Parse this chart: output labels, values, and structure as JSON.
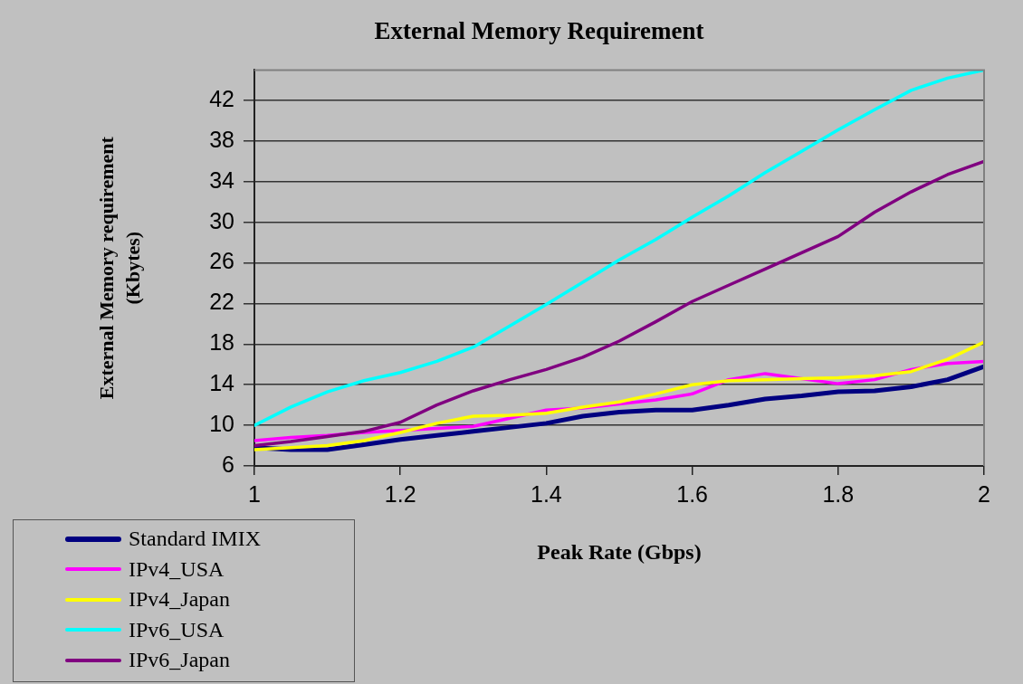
{
  "chart_data": {
    "type": "line",
    "title": "External Memory Requirement",
    "xlabel": "Peak Rate (Gbps)",
    "ylabel": "External Memory requirement (Kbytes)",
    "x": [
      1,
      1.05,
      1.1,
      1.15,
      1.2,
      1.25,
      1.3,
      1.35,
      1.4,
      1.45,
      1.5,
      1.55,
      1.6,
      1.65,
      1.7,
      1.75,
      1.8,
      1.85,
      1.9,
      1.95,
      2
    ],
    "xlim": [
      1,
      2
    ],
    "xticks": [
      1,
      1.2,
      1.4,
      1.6,
      1.8,
      2
    ],
    "ylim": [
      6,
      45
    ],
    "yticks": [
      6,
      10,
      14,
      18,
      22,
      26,
      30,
      34,
      38,
      42
    ],
    "grid": "y",
    "legend": "bottom left",
    "marker": "none",
    "line_style": "solid",
    "series": [
      {
        "name": "Standard IMIX",
        "color": "#000080",
        "values": [
          7.8,
          7.6,
          7.6,
          8.1,
          8.6,
          9.0,
          9.4,
          9.8,
          10.2,
          10.9,
          11.3,
          11.5,
          11.5,
          12.0,
          12.6,
          12.9,
          13.3,
          13.4,
          13.8,
          14.5,
          15.8
        ]
      },
      {
        "name": "IPv4_USA",
        "color": "#ff00ff",
        "values": [
          8.5,
          8.8,
          9.0,
          9.3,
          9.5,
          9.7,
          9.9,
          10.7,
          11.5,
          11.7,
          12.1,
          12.5,
          13.1,
          14.5,
          15.1,
          14.6,
          14.1,
          14.5,
          15.5,
          16.1,
          16.3
        ]
      },
      {
        "name": "IPv4_Japan",
        "color": "#ffff00",
        "values": [
          7.6,
          7.8,
          8.0,
          8.5,
          9.3,
          10.2,
          10.9,
          11.0,
          11.2,
          11.8,
          12.3,
          13.1,
          14.0,
          14.4,
          14.5,
          14.6,
          14.7,
          14.9,
          15.3,
          16.5,
          18.2
        ]
      },
      {
        "name": "IPv6_USA",
        "color": "#00ffff",
        "values": [
          10.0,
          11.8,
          13.3,
          14.4,
          15.2,
          16.3,
          17.7,
          19.8,
          21.9,
          24.1,
          26.3,
          28.3,
          30.5,
          32.6,
          34.9,
          37.0,
          39.1,
          41.1,
          43.0,
          44.2,
          45.0
        ]
      },
      {
        "name": "IPv6_Japan",
        "color": "#800080",
        "values": [
          8.0,
          8.4,
          8.9,
          9.4,
          10.3,
          12.0,
          13.4,
          14.5,
          15.5,
          16.7,
          18.3,
          20.2,
          22.2,
          23.8,
          25.4,
          27.0,
          28.6,
          31.0,
          33.0,
          34.7,
          36.0
        ]
      }
    ]
  }
}
